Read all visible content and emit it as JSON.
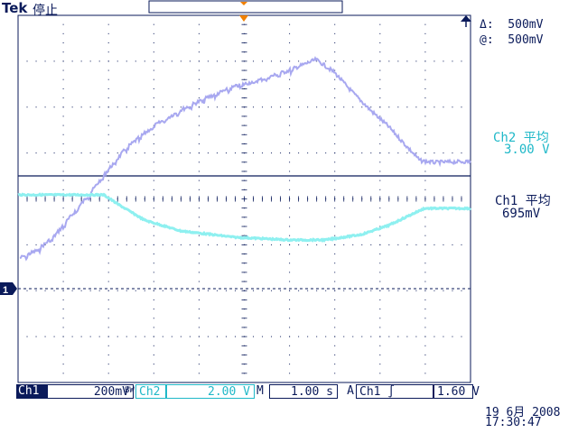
{
  "header": {
    "brand": "Tek",
    "run_state": "停止"
  },
  "cursors": {
    "delta": "Δ:  500mV",
    "at": "@:  500mV"
  },
  "measurements": {
    "ch2_label": "Ch2 平均",
    "ch2_value": "3.00 V",
    "ch1_label": "Ch1 平均",
    "ch1_value": "695mV"
  },
  "channel_marker": "1",
  "statusbar": {
    "ch1_tag": "Ch1",
    "ch1_scale": "200mV",
    "bw_mark": "BW",
    "ch2_tag": "Ch2",
    "ch2_scale": "2.00 V",
    "time_prefix": "M",
    "time_scale": "1.00 s",
    "trig_prefix": "A",
    "trig_source": "Ch1 ∫",
    "trig_level": "1.60 V"
  },
  "timestamp": {
    "date": "19 6月  2008",
    "time": "17:30:47"
  },
  "colors": {
    "ch1": "#a8a8f0",
    "ch2": "#8ef0f0",
    "frame": "#0a1a5a",
    "ch2_text": "#1fb8c8"
  }
}
